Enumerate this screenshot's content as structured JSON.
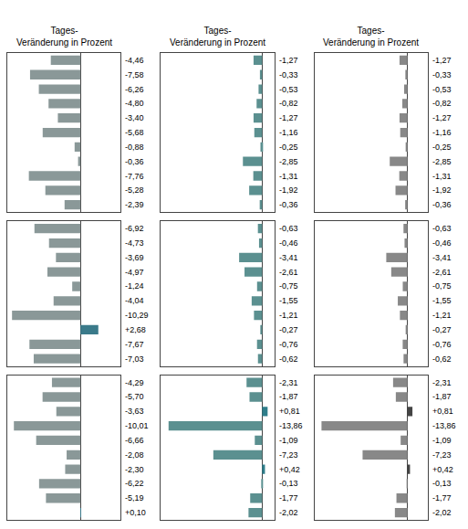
{
  "chart_data": [
    {
      "type": "bar",
      "orientation": "horizontal",
      "title": "Tages-\nVeränderung in Prozent",
      "categories": [
        null,
        null,
        null,
        null,
        null,
        null,
        null,
        null,
        null,
        null,
        null
      ],
      "values": [
        -4.46,
        -7.58,
        -6.26,
        -4.8,
        -3.4,
        -5.68,
        -0.88,
        -0.36,
        -7.76,
        -5.28,
        -2.39
      ],
      "value_labels": [
        "-4,46",
        "-7,58",
        "-6,26",
        "-4,80",
        "-3,40",
        "-5,68",
        "-0,88",
        "-0,36",
        "-7,76",
        "-5,28",
        "-2,39"
      ],
      "colors": [
        "#8A9898",
        "#8A9898",
        "#8A9898",
        "#8A9898",
        "#8A9898",
        "#8A9898",
        "#8A9898",
        "#8A9898",
        "#8A9898",
        "#8A9898",
        "#8A9898"
      ],
      "xlim": [
        -11,
        6.05
      ],
      "data_labels": true,
      "tick_labels": false,
      "grid": false
    },
    {
      "type": "bar",
      "orientation": "horizontal",
      "title": "Tages-\nVeränderung in Prozent",
      "categories": [
        null,
        null,
        null,
        null,
        null,
        null,
        null,
        null,
        null,
        null,
        null
      ],
      "values": [
        -1.27,
        -0.33,
        -0.53,
        -0.82,
        -1.27,
        -1.16,
        -0.25,
        -2.85,
        -1.31,
        -1.92,
        -0.36
      ],
      "value_labels": [
        "-1,27",
        "-0,33",
        "-0,53",
        "-0,82",
        "-1,27",
        "-1,16",
        "-0,25",
        "-2,85",
        "-1,31",
        "-1,92",
        "-0,36"
      ],
      "colors": [
        "#5B9090",
        "#5B9090",
        "#5B9090",
        "#5B9090",
        "#5B9090",
        "#5B9090",
        "#5B9090",
        "#5B9090",
        "#5B9090",
        "#5B9090",
        "#5B9090"
      ],
      "xlim": [
        -15,
        1.8
      ],
      "data_labels": true,
      "tick_labels": false,
      "grid": false
    },
    {
      "type": "bar",
      "orientation": "horizontal",
      "title": "Tages-\nVeränderung in Prozent",
      "categories": [
        null,
        null,
        null,
        null,
        null,
        null,
        null,
        null,
        null,
        null,
        null
      ],
      "values": [
        -1.27,
        -0.33,
        -0.53,
        -0.82,
        -1.27,
        -1.16,
        -0.25,
        -2.85,
        -1.31,
        -1.92,
        -0.36
      ],
      "value_labels": [
        "-1,27",
        "-0,33",
        "-0,53",
        "-0,82",
        "-1,27",
        "-1,16",
        "-0,25",
        "-2,85",
        "-1,31",
        "-1,92",
        "-0,36"
      ],
      "colors": [
        "#888888",
        "#888888",
        "#888888",
        "#888888",
        "#888888",
        "#888888",
        "#888888",
        "#888888",
        "#888888",
        "#888888",
        "#888888"
      ],
      "xlim": [
        -15,
        3.3
      ],
      "data_labels": true,
      "tick_labels": false,
      "grid": false
    },
    {
      "type": "bar",
      "orientation": "horizontal",
      "categories": [
        null,
        null,
        null,
        null,
        null,
        null,
        null,
        null,
        null,
        null
      ],
      "values": [
        -6.92,
        -4.73,
        -3.69,
        -4.97,
        -1.24,
        -4.04,
        -10.29,
        2.68,
        -7.67,
        -7.03
      ],
      "value_labels": [
        "-6,92",
        "-4,73",
        "-3,69",
        "-4,97",
        "-1,24",
        "-4,04",
        "-10,29",
        "+2,68",
        "-7,67",
        "-7,03"
      ],
      "colors": [
        "#8A9898",
        "#8A9898",
        "#8A9898",
        "#8A9898",
        "#8A9898",
        "#8A9898",
        "#8A9898",
        "#3A7A8A",
        "#8A9898",
        "#8A9898"
      ],
      "xlim": [
        -11,
        6.05
      ],
      "data_labels": true,
      "tick_labels": false,
      "grid": false
    },
    {
      "type": "bar",
      "orientation": "horizontal",
      "categories": [
        null,
        null,
        null,
        null,
        null,
        null,
        null,
        null,
        null,
        null
      ],
      "values": [
        -0.63,
        -0.46,
        -3.41,
        -2.61,
        -0.75,
        -1.55,
        -1.21,
        -0.27,
        -0.76,
        -0.62
      ],
      "value_labels": [
        "-0,63",
        "-0,46",
        "-3,41",
        "-2,61",
        "-0,75",
        "-1,55",
        "-1,21",
        "-0,27",
        "-0,76",
        "-0,62"
      ],
      "colors": [
        "#5B9090",
        "#5B9090",
        "#5B9090",
        "#5B9090",
        "#5B9090",
        "#5B9090",
        "#5B9090",
        "#5B9090",
        "#5B9090",
        "#5B9090"
      ],
      "xlim": [
        -15,
        1.8
      ],
      "data_labels": true,
      "tick_labels": false,
      "grid": false
    },
    {
      "type": "bar",
      "orientation": "horizontal",
      "categories": [
        null,
        null,
        null,
        null,
        null,
        null,
        null,
        null,
        null,
        null
      ],
      "values": [
        -0.63,
        -0.46,
        -3.41,
        -2.61,
        -0.75,
        -1.55,
        -1.21,
        -0.27,
        -0.76,
        -0.62
      ],
      "value_labels": [
        "-0,63",
        "-0,46",
        "-3,41",
        "-2,61",
        "-0,75",
        "-1,55",
        "-1,21",
        "-0,27",
        "-0,76",
        "-0,62"
      ],
      "colors": [
        "#888888",
        "#888888",
        "#888888",
        "#888888",
        "#888888",
        "#888888",
        "#888888",
        "#888888",
        "#888888",
        "#888888"
      ],
      "xlim": [
        -15,
        3.3
      ],
      "data_labels": true,
      "tick_labels": false,
      "grid": false
    },
    {
      "type": "bar",
      "orientation": "horizontal",
      "categories": [
        null,
        null,
        null,
        null,
        null,
        null,
        null,
        null,
        null,
        null
      ],
      "values": [
        -4.29,
        -5.7,
        -3.63,
        -10.01,
        -6.66,
        -2.08,
        -2.3,
        -6.22,
        -5.19,
        0.1
      ],
      "value_labels": [
        "-4,29",
        "-5,70",
        "-3,63",
        "-10,01",
        "-6,66",
        "-2,08",
        "-2,30",
        "-6,22",
        "-5,19",
        "+0,10"
      ],
      "colors": [
        "#8A9898",
        "#8A9898",
        "#8A9898",
        "#8A9898",
        "#8A9898",
        "#8A9898",
        "#8A9898",
        "#8A9898",
        "#8A9898",
        "#3A7A8A"
      ],
      "xlim": [
        -11,
        6.05
      ],
      "data_labels": true,
      "tick_labels": false,
      "grid": false
    },
    {
      "type": "bar",
      "orientation": "horizontal",
      "categories": [
        null,
        null,
        null,
        null,
        null,
        null,
        null,
        null,
        null,
        null
      ],
      "values": [
        -2.31,
        -1.87,
        0.81,
        -13.86,
        -1.09,
        -7.23,
        0.42,
        -0.13,
        -1.77,
        -2.02
      ],
      "value_labels": [
        "-2,31",
        "-1,87",
        "+0,81",
        "-13,86",
        "-1,09",
        "-7,23",
        "+0,42",
        "-0,13",
        "-1,77",
        "-2,02"
      ],
      "colors": [
        "#5B9090",
        "#5B9090",
        "#2E7D8A",
        "#5B9090",
        "#5B9090",
        "#5B9090",
        "#2E7D8A",
        "#5B9090",
        "#5B9090",
        "#5B9090"
      ],
      "xlim": [
        -15,
        1.8
      ],
      "data_labels": true,
      "tick_labels": false,
      "grid": false
    },
    {
      "type": "bar",
      "orientation": "horizontal",
      "categories": [
        null,
        null,
        null,
        null,
        null,
        null,
        null,
        null,
        null,
        null
      ],
      "values": [
        -2.31,
        -1.87,
        0.81,
        -13.86,
        -1.09,
        -7.23,
        0.42,
        -0.13,
        -1.77,
        -2.02
      ],
      "value_labels": [
        "-2,31",
        "-1,87",
        "+0,81",
        "-13,86",
        "-1,09",
        "-7,23",
        "+0,42",
        "-0,13",
        "-1,77",
        "-2,02"
      ],
      "colors": [
        "#888888",
        "#888888",
        "#444444",
        "#888888",
        "#888888",
        "#888888",
        "#444444",
        "#888888",
        "#888888",
        "#888888"
      ],
      "xlim": [
        -15,
        3.3
      ],
      "data_labels": true,
      "tick_labels": false,
      "grid": false
    }
  ]
}
